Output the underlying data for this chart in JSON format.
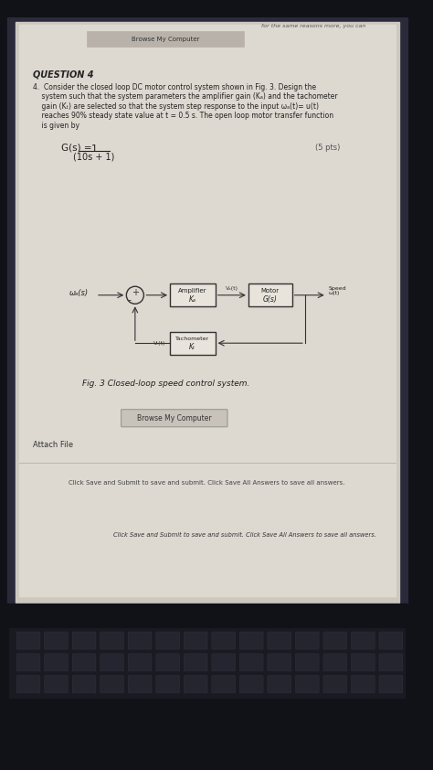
{
  "bg_color_top": "#1a1a2e",
  "bg_color_screen": "#d8d0c8",
  "screen_color": "#e8e4dc",
  "paper_color": "#f0ece4",
  "title_top": "Browse My Computer",
  "question_label": "QUESTION 4",
  "question_text": "4.  Consider the closed loop DC motor control system shown in Fig. 3. Design the\n    system such that the system parameters the amplifier gain (Kₐ) and the tachometer\n    gain (Kₜ) are selected so that the system step response to the input ωₐ(t)= u(t)\n    reaches 90% steady state value at t = 0.5 s. The open loop motor transfer function\n    is given by",
  "formula": "G(s) = 1 / (10s + 1)",
  "pts_label": "(5 pts)",
  "fig_caption": "Fig. 3 Closed-loop speed control system.",
  "input_label": "ωₐ(s)",
  "output_label": "Speed\nω(t)",
  "amp_box_label1": "Amplifier",
  "amp_box_label2": "Kₐ",
  "motor_box_label1": "Motor",
  "motor_box_label2": "G(s)",
  "tach_box_label1": "Tachometer",
  "tach_box_label2": "Kₜ",
  "v_a_label": "Vₐ(t)",
  "v_t_label": "Vₜ(t)",
  "browse_btn": "Browse My Computer",
  "attach_label": "Attach File",
  "bottom_text1": "Click Save and Submit to save and submit. Click Save All Answers to save all answers.",
  "top_right_text": "for the same reasons more, you can"
}
